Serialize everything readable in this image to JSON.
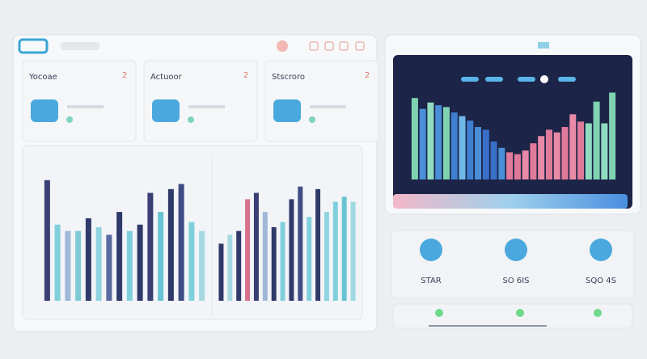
{
  "cards": [
    {
      "label": "Yocoae",
      "value": "2"
    },
    {
      "label": "Actuoor",
      "value": "2"
    },
    {
      "label": "Stscroro",
      "value": "2"
    }
  ],
  "widgets": [
    {
      "label": "STAR"
    },
    {
      "label": "SO 6IS"
    },
    {
      "label": "SQO 4S"
    }
  ],
  "chart_data": [
    {
      "type": "bar",
      "ylim": [
        0,
        100
      ],
      "values": [
        95,
        60,
        55,
        55,
        65,
        58,
        52,
        70,
        55,
        60,
        85,
        70,
        88,
        92,
        62,
        55
      ],
      "colors": [
        "#3a3f74",
        "#7fd0dc",
        "#9fb8d8",
        "#7fc9d6",
        "#2f3a6a",
        "#8fd3de",
        "#5a6aa0",
        "#2f3a6a",
        "#7fd0dc",
        "#2f3a6a",
        "#3a3f74",
        "#6ac3d2",
        "#2f3a6a",
        "#3f4c86",
        "#7fd0dc",
        "#a6d9e2"
      ]
    },
    {
      "type": "bar",
      "ylim": [
        0,
        100
      ],
      "values": [
        45,
        52,
        55,
        80,
        85,
        70,
        58,
        62,
        80,
        90,
        66,
        88,
        70,
        78,
        82,
        78
      ],
      "colors": [
        "#2f3a6a",
        "#a6d9e2",
        "#2f3a6a",
        "#d9718a",
        "#3a3f74",
        "#9fb8d8",
        "#2f3a6a",
        "#7fd0dc",
        "#2f3a6a",
        "#3f4c86",
        "#7fd0dc",
        "#2f3a6a",
        "#8fd3de",
        "#7fd0dc",
        "#6ac3d2",
        "#9fd8e2"
      ]
    },
    {
      "type": "bar",
      "ylim": [
        0,
        100
      ],
      "values": [
        90,
        78,
        85,
        82,
        80,
        74,
        70,
        65,
        58,
        55,
        42,
        35,
        30,
        28,
        32,
        40,
        48,
        55,
        52,
        58,
        72,
        64,
        62,
        86,
        62,
        96
      ],
      "colors": [
        "#7fd3b0",
        "#4a8fd8",
        "#8fdcc0",
        "#4a8fd8",
        "#7fd3b0",
        "#3f7fd0",
        "#6fb8e8",
        "#3f7fd0",
        "#4a8fd8",
        "#3a6fc8",
        "#3a6fc8",
        "#4a8fd8",
        "#e07a9a",
        "#e07a9a",
        "#e88aa8",
        "#e07a9a",
        "#e88aa8",
        "#e07a9a",
        "#e88aa8",
        "#e07a9a",
        "#e88aa8",
        "#e07a9a",
        "#8fdcc0",
        "#7fd3b0",
        "#8fdcc0",
        "#7fd3b0"
      ]
    }
  ]
}
